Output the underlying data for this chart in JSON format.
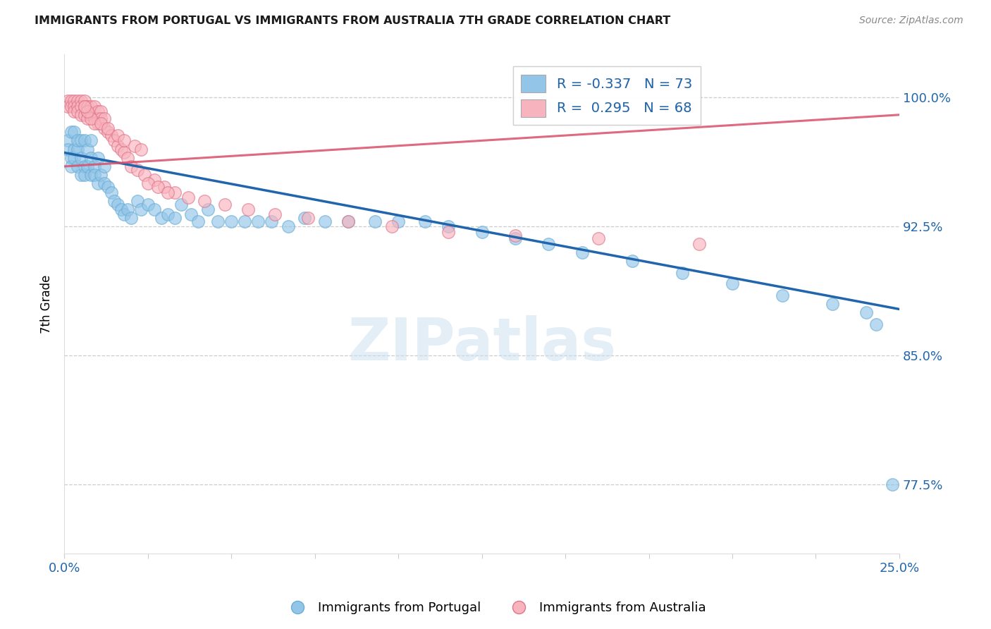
{
  "title": "IMMIGRANTS FROM PORTUGAL VS IMMIGRANTS FROM AUSTRALIA 7TH GRADE CORRELATION CHART",
  "source": "Source: ZipAtlas.com",
  "ylabel": "7th Grade",
  "ytick_labels": [
    "77.5%",
    "85.0%",
    "92.5%",
    "100.0%"
  ],
  "ytick_values": [
    0.775,
    0.85,
    0.925,
    1.0
  ],
  "xmin": 0.0,
  "xmax": 0.25,
  "ymin": 0.735,
  "ymax": 1.025,
  "legend_blue_r": "-0.337",
  "legend_blue_n": "73",
  "legend_pink_r": "0.295",
  "legend_pink_n": "68",
  "blue_color": "#92c5e8",
  "blue_edge_color": "#6aadd5",
  "blue_line_color": "#2166ac",
  "pink_color": "#f8b4be",
  "pink_edge_color": "#e0748a",
  "pink_line_color": "#d94f6a",
  "blue_line_x0": 0.0,
  "blue_line_y0": 0.968,
  "blue_line_x1": 0.25,
  "blue_line_y1": 0.877,
  "pink_line_x0": 0.0,
  "pink_line_y0": 0.96,
  "pink_line_x1": 0.25,
  "pink_line_y1": 0.99,
  "blue_scatter_x": [
    0.001,
    0.001,
    0.002,
    0.002,
    0.002,
    0.003,
    0.003,
    0.003,
    0.004,
    0.004,
    0.004,
    0.005,
    0.005,
    0.005,
    0.006,
    0.006,
    0.006,
    0.007,
    0.007,
    0.008,
    0.008,
    0.008,
    0.009,
    0.009,
    0.01,
    0.01,
    0.011,
    0.012,
    0.012,
    0.013,
    0.014,
    0.015,
    0.016,
    0.017,
    0.018,
    0.019,
    0.02,
    0.022,
    0.023,
    0.025,
    0.027,
    0.029,
    0.031,
    0.033,
    0.035,
    0.038,
    0.04,
    0.043,
    0.046,
    0.05,
    0.054,
    0.058,
    0.062,
    0.067,
    0.072,
    0.078,
    0.085,
    0.093,
    0.1,
    0.108,
    0.115,
    0.125,
    0.135,
    0.145,
    0.155,
    0.17,
    0.185,
    0.2,
    0.215,
    0.23,
    0.24,
    0.243,
    0.248
  ],
  "blue_scatter_y": [
    0.975,
    0.97,
    0.965,
    0.96,
    0.98,
    0.97,
    0.965,
    0.98,
    0.97,
    0.975,
    0.96,
    0.955,
    0.965,
    0.975,
    0.96,
    0.955,
    0.975,
    0.96,
    0.97,
    0.955,
    0.965,
    0.975,
    0.96,
    0.955,
    0.965,
    0.95,
    0.955,
    0.96,
    0.95,
    0.948,
    0.945,
    0.94,
    0.938,
    0.935,
    0.932,
    0.935,
    0.93,
    0.94,
    0.935,
    0.938,
    0.935,
    0.93,
    0.932,
    0.93,
    0.938,
    0.932,
    0.928,
    0.935,
    0.928,
    0.928,
    0.928,
    0.928,
    0.928,
    0.925,
    0.93,
    0.928,
    0.928,
    0.928,
    0.928,
    0.928,
    0.925,
    0.922,
    0.918,
    0.915,
    0.91,
    0.905,
    0.898,
    0.892,
    0.885,
    0.88,
    0.875,
    0.868,
    0.775
  ],
  "pink_scatter_x": [
    0.001,
    0.001,
    0.002,
    0.002,
    0.003,
    0.003,
    0.003,
    0.004,
    0.004,
    0.004,
    0.005,
    0.005,
    0.005,
    0.006,
    0.006,
    0.006,
    0.007,
    0.007,
    0.007,
    0.008,
    0.008,
    0.009,
    0.009,
    0.01,
    0.01,
    0.01,
    0.011,
    0.011,
    0.012,
    0.012,
    0.013,
    0.014,
    0.015,
    0.016,
    0.017,
    0.018,
    0.019,
    0.02,
    0.022,
    0.024,
    0.027,
    0.03,
    0.033,
    0.037,
    0.042,
    0.048,
    0.055,
    0.063,
    0.073,
    0.085,
    0.098,
    0.115,
    0.135,
    0.16,
    0.19,
    0.025,
    0.028,
    0.031,
    0.009,
    0.008,
    0.007,
    0.006,
    0.011,
    0.013,
    0.016,
    0.018,
    0.021,
    0.023
  ],
  "pink_scatter_y": [
    0.998,
    0.995,
    0.998,
    0.995,
    0.998,
    0.995,
    0.992,
    0.998,
    0.995,
    0.992,
    0.998,
    0.995,
    0.99,
    0.998,
    0.995,
    0.99,
    0.995,
    0.992,
    0.988,
    0.995,
    0.99,
    0.995,
    0.988,
    0.992,
    0.988,
    0.985,
    0.992,
    0.988,
    0.988,
    0.982,
    0.98,
    0.978,
    0.975,
    0.972,
    0.97,
    0.968,
    0.965,
    0.96,
    0.958,
    0.955,
    0.952,
    0.948,
    0.945,
    0.942,
    0.94,
    0.938,
    0.935,
    0.932,
    0.93,
    0.928,
    0.925,
    0.922,
    0.92,
    0.918,
    0.915,
    0.95,
    0.948,
    0.945,
    0.985,
    0.988,
    0.992,
    0.995,
    0.985,
    0.982,
    0.978,
    0.975,
    0.972,
    0.97
  ],
  "watermark_text": "ZIPatlas",
  "background_color": "#ffffff",
  "grid_color": "#cccccc"
}
